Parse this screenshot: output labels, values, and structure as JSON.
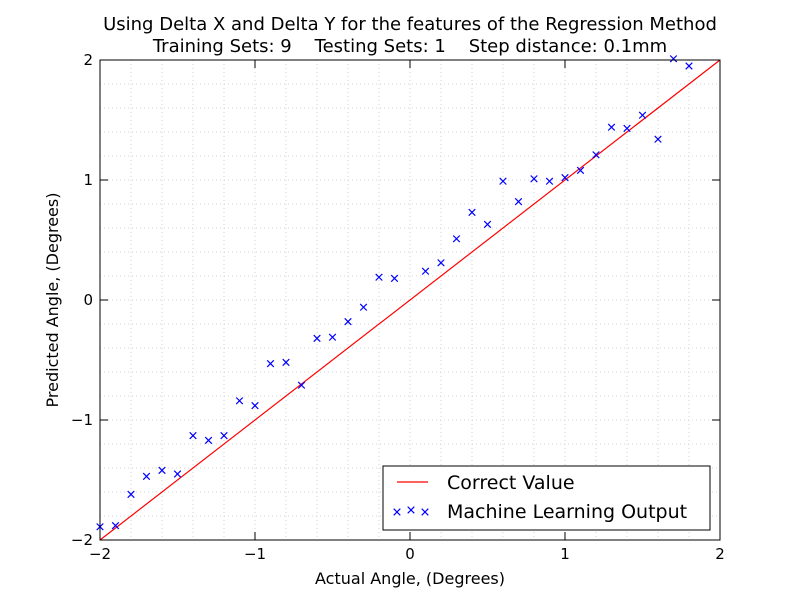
{
  "chart_data": {
    "type": "scatter",
    "title": "Using Delta X and Delta Y for the features of the Regression Method",
    "subtitle": "Training Sets: 9    Testing Sets: 1    Step distance: 0.1mm",
    "xlabel": "Actual Angle, (Degrees)",
    "ylabel": "Predicted Angle, (Degrees)",
    "xlim": [
      -2,
      2
    ],
    "ylim": [
      -2,
      2
    ],
    "xticks": [
      -2,
      -1,
      0,
      1,
      2
    ],
    "yticks": [
      -2,
      -1,
      0,
      1,
      2
    ],
    "x_tick_labels": [
      "−2",
      "−1",
      "0",
      "1",
      "2"
    ],
    "y_tick_labels": [
      "−2",
      "−1",
      "0",
      "1",
      "2"
    ],
    "grid": true,
    "legend_position": "lower-right",
    "series": [
      {
        "name": "Correct Value",
        "kind": "line",
        "color": "#ff0000",
        "x": [
          -2,
          2
        ],
        "y": [
          -2,
          2
        ]
      },
      {
        "name": "Machine Learning Output",
        "kind": "scatter",
        "marker": "x",
        "color": "#0000ff",
        "x": [
          -2.0,
          -1.9,
          -1.8,
          -1.7,
          -1.6,
          -1.5,
          -1.4,
          -1.3,
          -1.2,
          -1.1,
          -1.0,
          -0.9,
          -0.8,
          -0.7,
          -0.6,
          -0.5,
          -0.4,
          -0.3,
          -0.2,
          -0.1,
          0.1,
          0.2,
          0.3,
          0.4,
          0.5,
          0.6,
          0.7,
          0.8,
          0.9,
          1.0,
          1.1,
          1.2,
          1.3,
          1.4,
          1.5,
          1.6,
          1.7,
          1.8
        ],
        "y": [
          -1.89,
          -1.88,
          -1.62,
          -1.47,
          -1.42,
          -1.45,
          -1.13,
          -1.17,
          -1.13,
          -0.84,
          -0.88,
          -0.53,
          -0.52,
          -0.71,
          -0.32,
          -0.31,
          -0.18,
          -0.06,
          0.19,
          0.18,
          0.24,
          0.31,
          0.51,
          0.73,
          0.63,
          0.99,
          0.82,
          1.01,
          0.99,
          1.02,
          1.08,
          1.21,
          1.44,
          1.43,
          1.54,
          1.34,
          2.01,
          1.95
        ]
      }
    ]
  }
}
